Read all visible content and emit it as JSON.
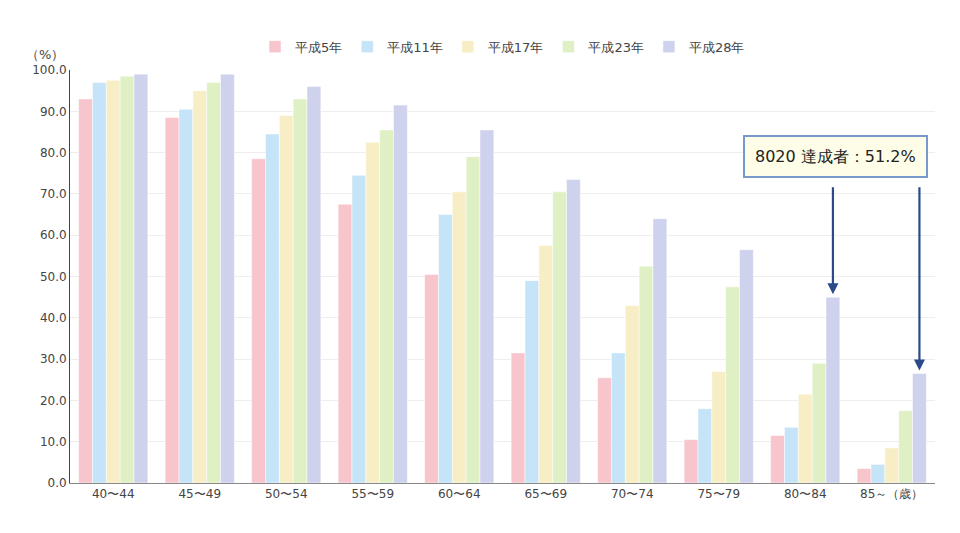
{
  "chart_data": {
    "type": "bar",
    "categories": [
      "40〜44",
      "45〜49",
      "50〜54",
      "55〜59",
      "60〜64",
      "65〜69",
      "70〜74",
      "75〜79",
      "80〜84",
      "85～（歳）"
    ],
    "series": [
      {
        "name": "平成5年",
        "color": "#f7c5cb",
        "values": [
          93.0,
          88.5,
          78.5,
          67.5,
          50.5,
          31.5,
          25.5,
          10.5,
          11.5,
          3.5
        ]
      },
      {
        "name": "平成11年",
        "color": "#c5e4f7",
        "values": [
          97.0,
          90.5,
          84.5,
          74.5,
          65.0,
          49.0,
          31.5,
          18.0,
          13.5,
          4.5
        ]
      },
      {
        "name": "平成17年",
        "color": "#f7eec5",
        "values": [
          97.5,
          95.0,
          89.0,
          82.5,
          70.5,
          57.5,
          43.0,
          27.0,
          21.5,
          8.5
        ]
      },
      {
        "name": "平成23年",
        "color": "#dff0c5",
        "values": [
          98.5,
          97.0,
          93.0,
          85.5,
          79.0,
          70.5,
          52.5,
          47.5,
          29.0,
          17.5
        ]
      },
      {
        "name": "平成28年",
        "color": "#ced2ed",
        "values": [
          99.0,
          99.0,
          96.0,
          91.5,
          85.5,
          73.5,
          64.0,
          56.5,
          45.0,
          26.5
        ]
      }
    ],
    "ylabel": "（%）",
    "ylim": [
      0,
      100
    ],
    "yticks": [
      {
        "value": 0,
        "label": "0.0"
      },
      {
        "value": 10,
        "label": "10.0"
      },
      {
        "value": 20,
        "label": "20.0"
      },
      {
        "value": 30,
        "label": "30.0"
      },
      {
        "value": 40,
        "label": "40.0"
      },
      {
        "value": 50,
        "label": "50.0"
      },
      {
        "value": 60,
        "label": "60.0"
      },
      {
        "value": 70,
        "label": "70.0"
      },
      {
        "value": 80,
        "label": "80.0"
      },
      {
        "value": 90,
        "label": "90.0"
      },
      {
        "value": 100,
        "label": "100.0"
      }
    ],
    "grid": true,
    "legend": "top",
    "annotations": [
      {
        "text": "8020 達成者：51.2%",
        "color": "#2a4a8a",
        "series": "平成28年",
        "categories": [
          "80〜84",
          "85～（歳）"
        ]
      }
    ]
  }
}
